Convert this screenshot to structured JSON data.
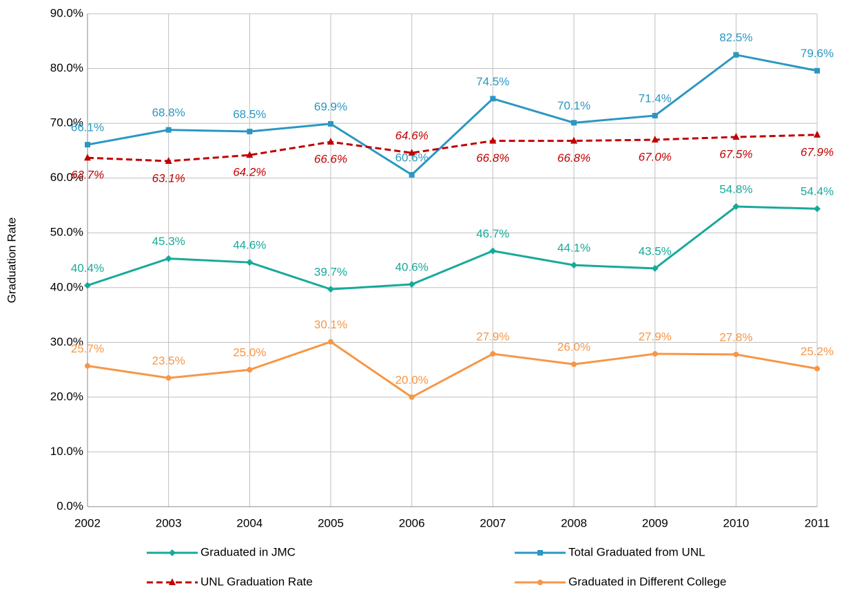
{
  "chart_data": {
    "type": "line",
    "y_label": "Graduation Rate",
    "categories": [
      "2002",
      "2003",
      "2004",
      "2005",
      "2006",
      "2007",
      "2008",
      "2009",
      "2010",
      "2011"
    ],
    "ylim": [
      0,
      90
    ],
    "yticks": [
      {
        "value": 0,
        "label": "0.0%"
      },
      {
        "value": 10,
        "label": "10.0%"
      },
      {
        "value": 20,
        "label": "20.0%"
      },
      {
        "value": 30,
        "label": "30.0%"
      },
      {
        "value": 40,
        "label": "40.0%"
      },
      {
        "value": 50,
        "label": "50.0%"
      },
      {
        "value": 60,
        "label": "60.0%"
      },
      {
        "value": 70,
        "label": "70.0%"
      },
      {
        "value": 80,
        "label": "80.0%"
      },
      {
        "value": 90,
        "label": "90.0%"
      }
    ],
    "grid": true,
    "legend": "bottom",
    "series": [
      {
        "name": "Graduated in JMC",
        "color": "#17a99a",
        "marker": "diamond",
        "dashed": false,
        "values": [
          40.4,
          45.3,
          44.6,
          39.7,
          40.6,
          46.7,
          44.1,
          43.5,
          54.8,
          54.4
        ],
        "value_labels": [
          "40.4%",
          "45.3%",
          "44.6%",
          "39.7%",
          "40.6%",
          "46.7%",
          "44.1%",
          "43.5%",
          "54.8%",
          "54.4%"
        ]
      },
      {
        "name": "Total Graduated from UNL",
        "color": "#2b97c2",
        "marker": "square",
        "dashed": false,
        "values": [
          66.1,
          68.8,
          68.5,
          69.9,
          60.6,
          74.5,
          70.1,
          71.4,
          82.5,
          79.6
        ],
        "value_labels": [
          "66.1%",
          "68.8%",
          "68.5%",
          "69.9%",
          "60.6%",
          "74.5%",
          "70.1%",
          "71.4%",
          "82.5%",
          "79.6%"
        ]
      },
      {
        "name": "UNL Graduation Rate",
        "color": "#c00000",
        "marker": "triangle",
        "dashed": true,
        "values": [
          63.7,
          63.1,
          64.2,
          66.6,
          64.6,
          66.8,
          66.8,
          67.0,
          67.5,
          67.9
        ],
        "value_labels": [
          "63.7%",
          "63.1%",
          "64.2%",
          "66.6%",
          "64.6%",
          "66.8%",
          "66.8%",
          "67.0%",
          "67.5%",
          "67.9%"
        ]
      },
      {
        "name": "Graduated in Different College",
        "color": "#f79646",
        "marker": "circle",
        "dashed": false,
        "values": [
          25.7,
          23.5,
          25.0,
          30.1,
          20.0,
          27.9,
          26.0,
          27.9,
          27.8,
          25.2
        ],
        "value_labels": [
          "25.7%",
          "23.5%",
          "25.0%",
          "30.1%",
          "20.0%",
          "27.9%",
          "26.0%",
          "27.9%",
          "27.8%",
          "25.2%"
        ]
      }
    ]
  }
}
